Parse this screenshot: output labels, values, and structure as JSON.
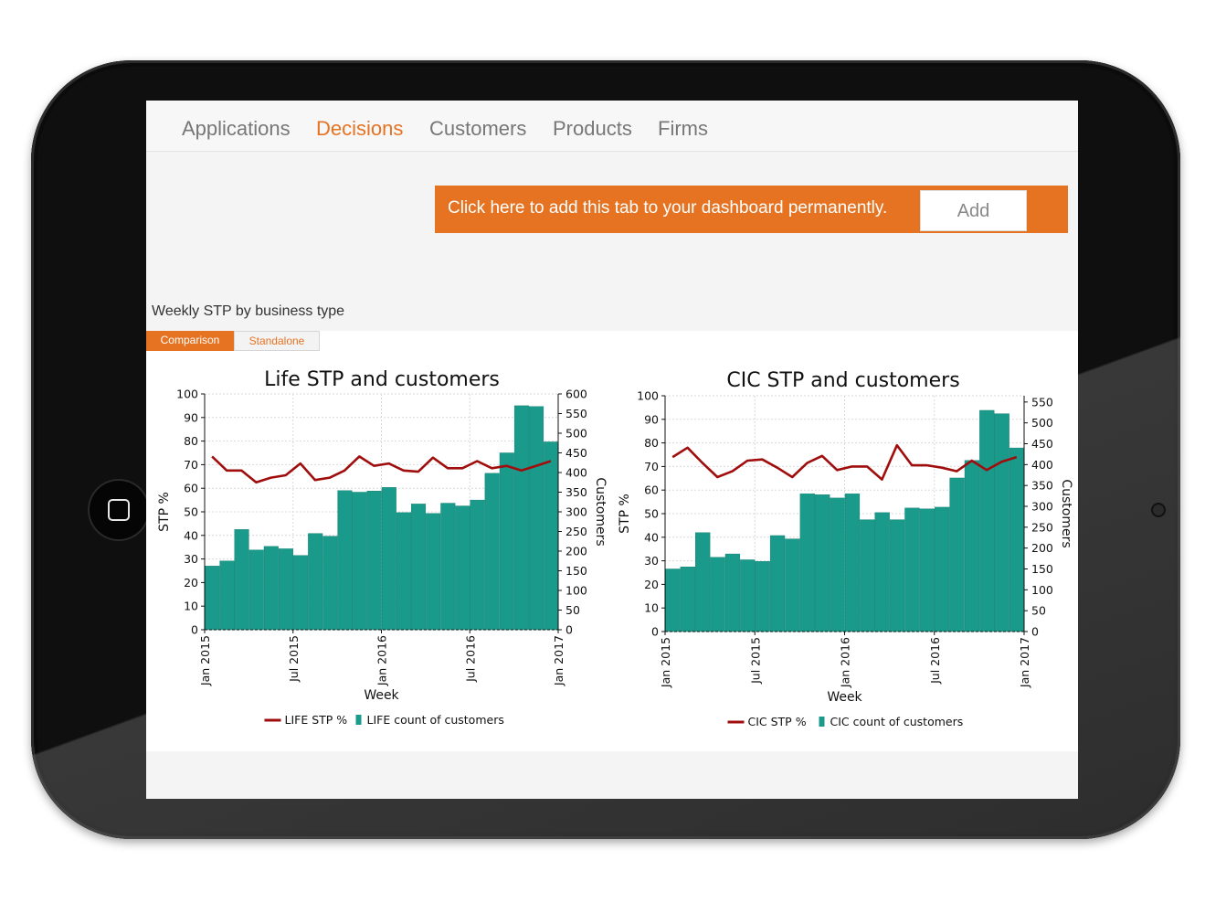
{
  "nav": {
    "items": [
      "Applications",
      "Decisions",
      "Customers",
      "Products",
      "Firms"
    ],
    "active": "Decisions"
  },
  "banner": {
    "text": "Click here to add this tab to your dashboard permanently.",
    "button_label": "Add"
  },
  "section": {
    "title": "Weekly STP by business type",
    "tabs": [
      "Comparison",
      "Standalone"
    ],
    "active_tab": "Comparison"
  },
  "colors": {
    "accent": "#e67322",
    "bar": "#1a9a8a",
    "line": "#a00d0d"
  },
  "chart_data": [
    {
      "type": "bar",
      "title": "Life STP and customers",
      "xlabel": "Week",
      "ylabel": "STP %",
      "y2label": "Customers",
      "xticks": [
        "Jan 2015",
        "Jul 2015",
        "Jan 2016",
        "Jul 2016",
        "Jan 2017"
      ],
      "xlim": [
        "2015-01-01",
        "2017-01-01"
      ],
      "ylim": [
        0,
        100
      ],
      "y2lim": [
        0,
        600
      ],
      "yticks": [
        0,
        10,
        20,
        30,
        40,
        50,
        60,
        70,
        80,
        90,
        100
      ],
      "y2ticks": [
        0,
        50,
        100,
        150,
        200,
        250,
        300,
        350,
        400,
        450,
        500,
        550,
        600
      ],
      "grid": true,
      "legend_position": "bottom",
      "series": [
        {
          "name": "LIFE STP %",
          "type": "line",
          "axis": "left",
          "values": [
            73.5,
            67.5,
            67.5,
            62.5,
            64.5,
            65.5,
            70.5,
            63.5,
            64.5,
            67.5,
            73.5,
            69.5,
            70.5,
            67.5,
            67,
            73,
            68.5,
            68.5,
            71.5,
            68.5,
            69.5,
            67.5,
            69.5,
            71.5
          ]
        },
        {
          "name": "LIFE count of customers",
          "type": "bar",
          "axis": "right",
          "values": [
            162,
            175,
            255,
            203,
            212,
            206,
            189,
            245,
            238,
            354,
            350,
            353,
            362,
            298,
            320,
            296,
            322,
            315,
            330,
            398,
            450,
            570,
            568,
            478
          ]
        }
      ]
    },
    {
      "type": "bar",
      "title": "CIC STP and customers",
      "xlabel": "Week",
      "ylabel": "STP %",
      "y2label": "Customers",
      "xticks": [
        "Jan 2015",
        "Jul 2015",
        "Jan 2016",
        "Jul 2016",
        "Jan 2017"
      ],
      "xlim": [
        "2015-01-01",
        "2017-01-01"
      ],
      "ylim": [
        0,
        100
      ],
      "y2lim": [
        0,
        565
      ],
      "yticks": [
        0,
        10,
        20,
        30,
        40,
        50,
        60,
        70,
        80,
        90,
        100
      ],
      "y2ticks": [
        0,
        50,
        100,
        150,
        200,
        250,
        300,
        350,
        400,
        450,
        500,
        550
      ],
      "grid": true,
      "legend_position": "bottom",
      "series": [
        {
          "name": "CIC STP %",
          "type": "line",
          "axis": "left",
          "values": [
            74,
            78,
            71.5,
            65.5,
            68,
            72.5,
            73,
            69.5,
            65.5,
            71.5,
            74.5,
            68.5,
            70,
            70,
            64.5,
            79,
            70.5,
            70.5,
            69.5,
            68,
            72.5,
            68.5,
            72,
            74
          ]
        },
        {
          "name": "CIC count of customers",
          "type": "bar",
          "axis": "right",
          "values": [
            150,
            155,
            237,
            178,
            186,
            172,
            168,
            230,
            222,
            330,
            328,
            320,
            330,
            268,
            285,
            268,
            296,
            294,
            298,
            368,
            410,
            530,
            522,
            440
          ]
        }
      ]
    }
  ]
}
